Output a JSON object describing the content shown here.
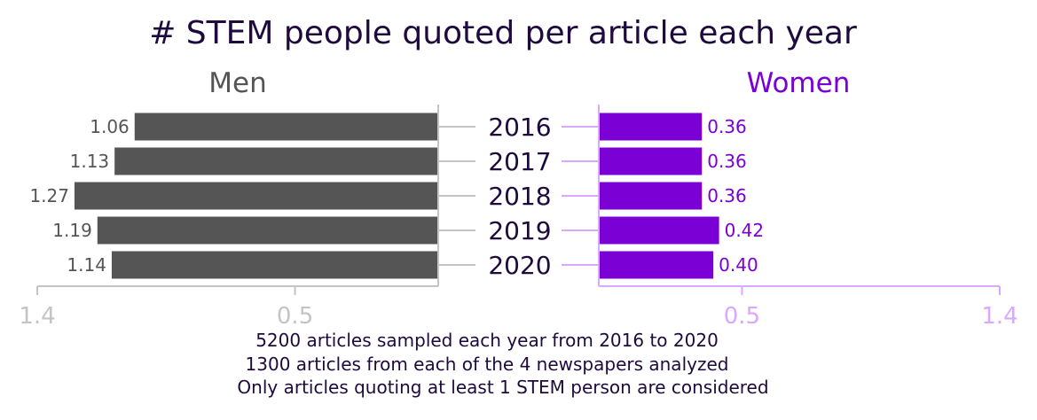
{
  "chart_data": {
    "type": "bar",
    "title": "# STEM people quoted per article each year",
    "categories": [
      "2016",
      "2017",
      "2018",
      "2019",
      "2020"
    ],
    "series": [
      {
        "name": "Men",
        "values": [
          1.06,
          1.13,
          1.27,
          1.19,
          1.14
        ],
        "labels": [
          "1.06",
          "1.13",
          "1.27",
          "1.19",
          "1.14"
        ],
        "color": "#555555",
        "tick_labels": [
          "1.4",
          "0.5"
        ]
      },
      {
        "name": "Women",
        "values": [
          0.36,
          0.36,
          0.36,
          0.42,
          0.4
        ],
        "labels": [
          "0.36",
          "0.36",
          "0.36",
          "0.42",
          "0.40"
        ],
        "color": "#7a00d6",
        "tick_labels": [
          "0.5",
          "1.4"
        ]
      }
    ],
    "xlim": [
      0,
      1.4
    ],
    "axis_color_men": "#c4c4c4",
    "axis_color_women": "#d9a8ff",
    "title_color": "#1f0a3d",
    "notes": [
      "5200 articles sampled each year from 2016 to 2020",
      "1300 articles from each of the 4 newspapers analyzed",
      "Only articles quoting at least 1 STEM person are considered"
    ]
  }
}
